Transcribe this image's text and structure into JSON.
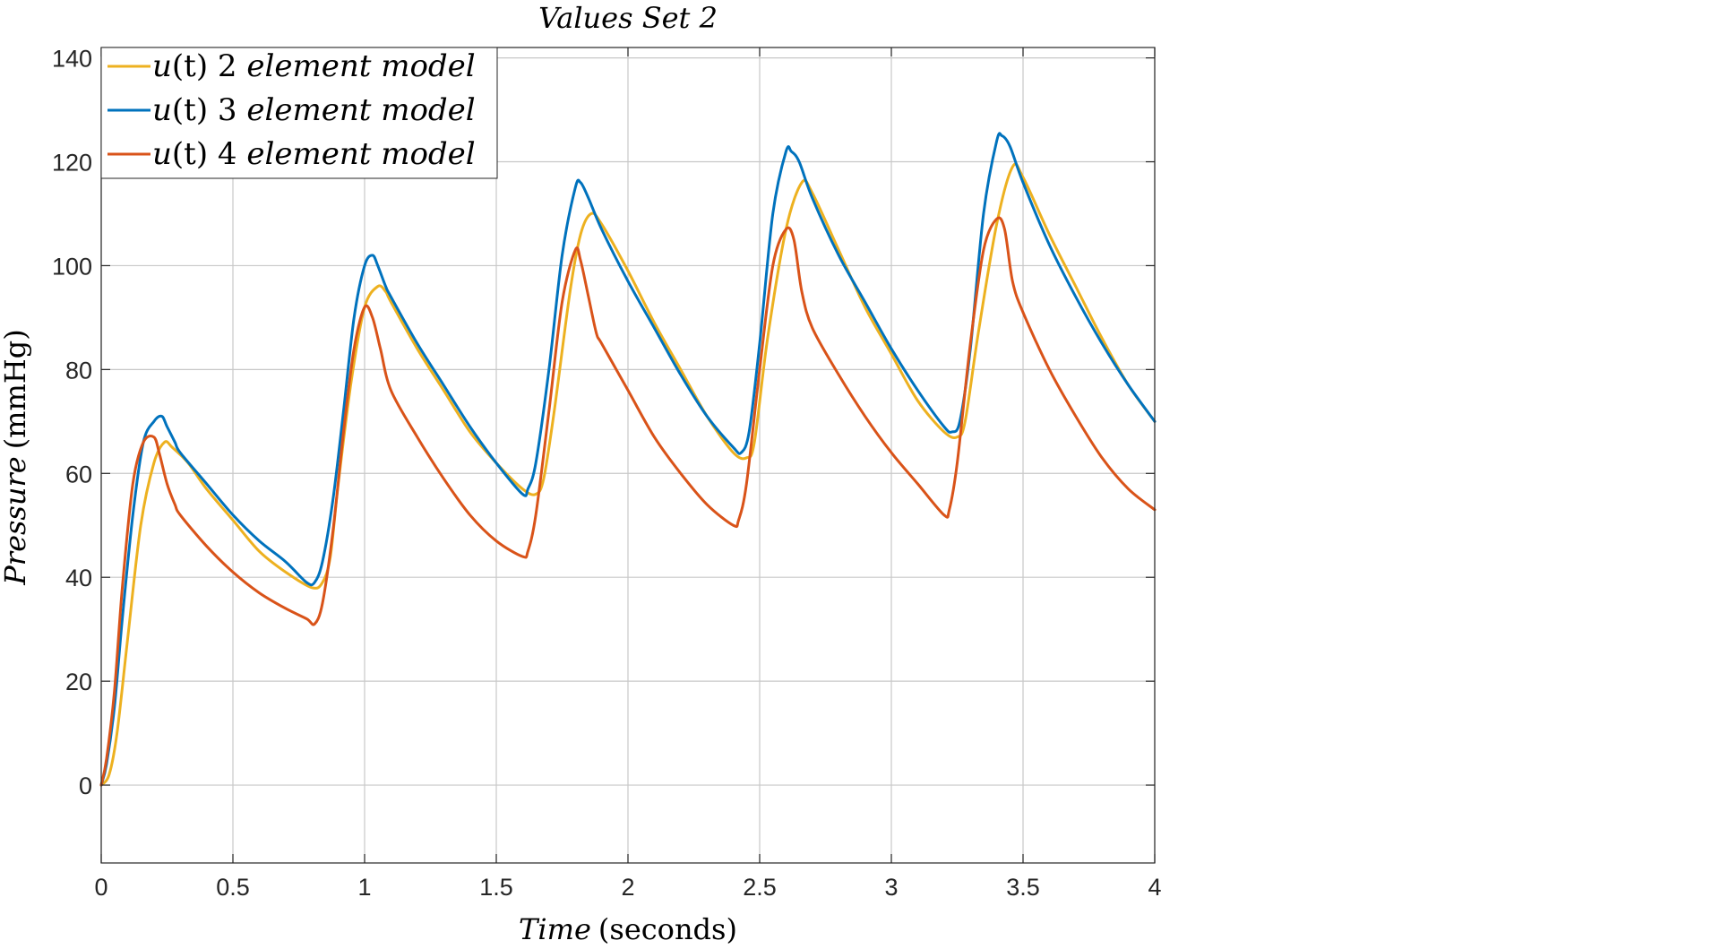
{
  "chart_data": {
    "type": "line",
    "title": "Values Set 2",
    "xlabel": {
      "italic": "Time",
      "roman": "(seconds)"
    },
    "ylabel": {
      "italic": "Pressure",
      "roman": "(mmHg)"
    },
    "xlim": [
      0,
      4
    ],
    "ylim": [
      -15,
      142
    ],
    "xticks": [
      0,
      0.5,
      1,
      1.5,
      2,
      2.5,
      3,
      3.5,
      4
    ],
    "xtick_labels": [
      "0",
      "0.5",
      "1",
      "1.5",
      "2",
      "2.5",
      "3",
      "3.5",
      "4"
    ],
    "yticks": [
      0,
      20,
      40,
      60,
      80,
      100,
      120,
      140
    ],
    "ytick_labels": [
      "0",
      "20",
      "40",
      "60",
      "80",
      "100",
      "120",
      "140"
    ],
    "grid": true,
    "legend_position": "top-left",
    "series": [
      {
        "name": "u(t) 2 element model",
        "legend": {
          "italic_pre": "u",
          "roman_mid": "(t) 2 ",
          "italic_post": "element model"
        },
        "color": "#EDB120",
        "x": [
          0,
          0.03,
          0.06,
          0.1,
          0.15,
          0.2,
          0.24,
          0.27,
          0.33,
          0.4,
          0.5,
          0.6,
          0.7,
          0.8,
          0.84,
          0.87,
          0.9,
          0.95,
          1.0,
          1.05,
          1.08,
          1.1,
          1.2,
          1.3,
          1.4,
          1.5,
          1.6,
          1.65,
          1.68,
          1.72,
          1.78,
          1.82,
          1.86,
          1.9,
          2.0,
          2.1,
          2.2,
          2.3,
          2.4,
          2.45,
          2.48,
          2.53,
          2.6,
          2.66,
          2.7,
          2.8,
          2.9,
          3.0,
          3.1,
          3.2,
          3.25,
          3.28,
          3.33,
          3.4,
          3.46,
          3.5,
          3.6,
          3.7,
          3.8,
          3.9,
          4.0
        ],
        "y": [
          0,
          2,
          10,
          28,
          50,
          62,
          66,
          65,
          62,
          57,
          51,
          45,
          41,
          38,
          39,
          44,
          58,
          78,
          92,
          96,
          95,
          93,
          84,
          76,
          68,
          62,
          57,
          56,
          59,
          72,
          95,
          106,
          110,
          108,
          99,
          89,
          80,
          71,
          64,
          63,
          66,
          86,
          107,
          116,
          114,
          103,
          92,
          83,
          74,
          68,
          67,
          70,
          87,
          108,
          119,
          117,
          106,
          96,
          86,
          77,
          70
        ]
      },
      {
        "name": "u(t) 3 element model",
        "legend": {
          "italic_pre": "u",
          "roman_mid": "(t) 3 ",
          "italic_post": "element model"
        },
        "color": "#0072BD",
        "x": [
          0,
          0.02,
          0.05,
          0.08,
          0.12,
          0.16,
          0.2,
          0.23,
          0.25,
          0.28,
          0.3,
          0.4,
          0.5,
          0.6,
          0.7,
          0.78,
          0.81,
          0.84,
          0.88,
          0.92,
          0.96,
          1.0,
          1.03,
          1.05,
          1.08,
          1.1,
          1.2,
          1.3,
          1.4,
          1.5,
          1.6,
          1.62,
          1.65,
          1.7,
          1.75,
          1.8,
          1.82,
          1.85,
          1.9,
          2.0,
          2.1,
          2.2,
          2.3,
          2.4,
          2.43,
          2.46,
          2.5,
          2.55,
          2.6,
          2.62,
          2.65,
          2.7,
          2.8,
          2.9,
          3.0,
          3.1,
          3.2,
          3.23,
          3.26,
          3.3,
          3.35,
          3.4,
          3.42,
          3.45,
          3.5,
          3.6,
          3.7,
          3.8,
          3.9,
          4.0
        ],
        "y": [
          0,
          4,
          15,
          32,
          52,
          66,
          70,
          71,
          69,
          66,
          64,
          58,
          52,
          47,
          43,
          39,
          39,
          43,
          55,
          72,
          90,
          100,
          102,
          100,
          96,
          94,
          85,
          77,
          69,
          62,
          56,
          57,
          62,
          80,
          102,
          115,
          116,
          113,
          107,
          97,
          88,
          79,
          71,
          65,
          64,
          68,
          85,
          110,
          122,
          122,
          120,
          113,
          102,
          93,
          84,
          76,
          69,
          68,
          70,
          84,
          110,
          124,
          125,
          123,
          116,
          104,
          94,
          85,
          77,
          70
        ]
      },
      {
        "name": "u(t) 4 element model",
        "legend": {
          "italic_pre": "u",
          "roman_mid": "(t) 4 ",
          "italic_post": "element model"
        },
        "color": "#D95319",
        "x": [
          0,
          0.02,
          0.05,
          0.08,
          0.12,
          0.16,
          0.2,
          0.22,
          0.25,
          0.28,
          0.3,
          0.4,
          0.5,
          0.6,
          0.7,
          0.78,
          0.81,
          0.84,
          0.88,
          0.92,
          0.96,
          1.0,
          1.03,
          1.06,
          1.1,
          1.2,
          1.3,
          1.4,
          1.5,
          1.6,
          1.62,
          1.65,
          1.7,
          1.75,
          1.8,
          1.82,
          1.85,
          1.88,
          1.9,
          2.0,
          2.1,
          2.2,
          2.3,
          2.4,
          2.42,
          2.45,
          2.5,
          2.55,
          2.6,
          2.63,
          2.66,
          2.7,
          2.8,
          2.9,
          3.0,
          3.1,
          3.2,
          3.22,
          3.25,
          3.3,
          3.35,
          3.4,
          3.43,
          3.46,
          3.5,
          3.6,
          3.7,
          3.8,
          3.9,
          4.0
        ],
        "y": [
          0,
          5,
          18,
          38,
          58,
          66,
          67,
          64,
          58,
          54,
          52,
          46,
          41,
          37,
          34,
          32,
          31,
          35,
          49,
          68,
          84,
          92,
          90,
          84,
          76,
          67,
          59,
          52,
          47,
          44,
          45,
          52,
          72,
          93,
          103,
          101,
          94,
          87,
          85,
          76,
          67,
          60,
          54,
          50,
          51,
          58,
          80,
          100,
          107,
          105,
          95,
          88,
          79,
          71,
          64,
          58,
          52,
          53,
          62,
          85,
          103,
          109,
          107,
          97,
          91,
          80,
          71,
          63,
          57,
          53
        ]
      }
    ]
  }
}
